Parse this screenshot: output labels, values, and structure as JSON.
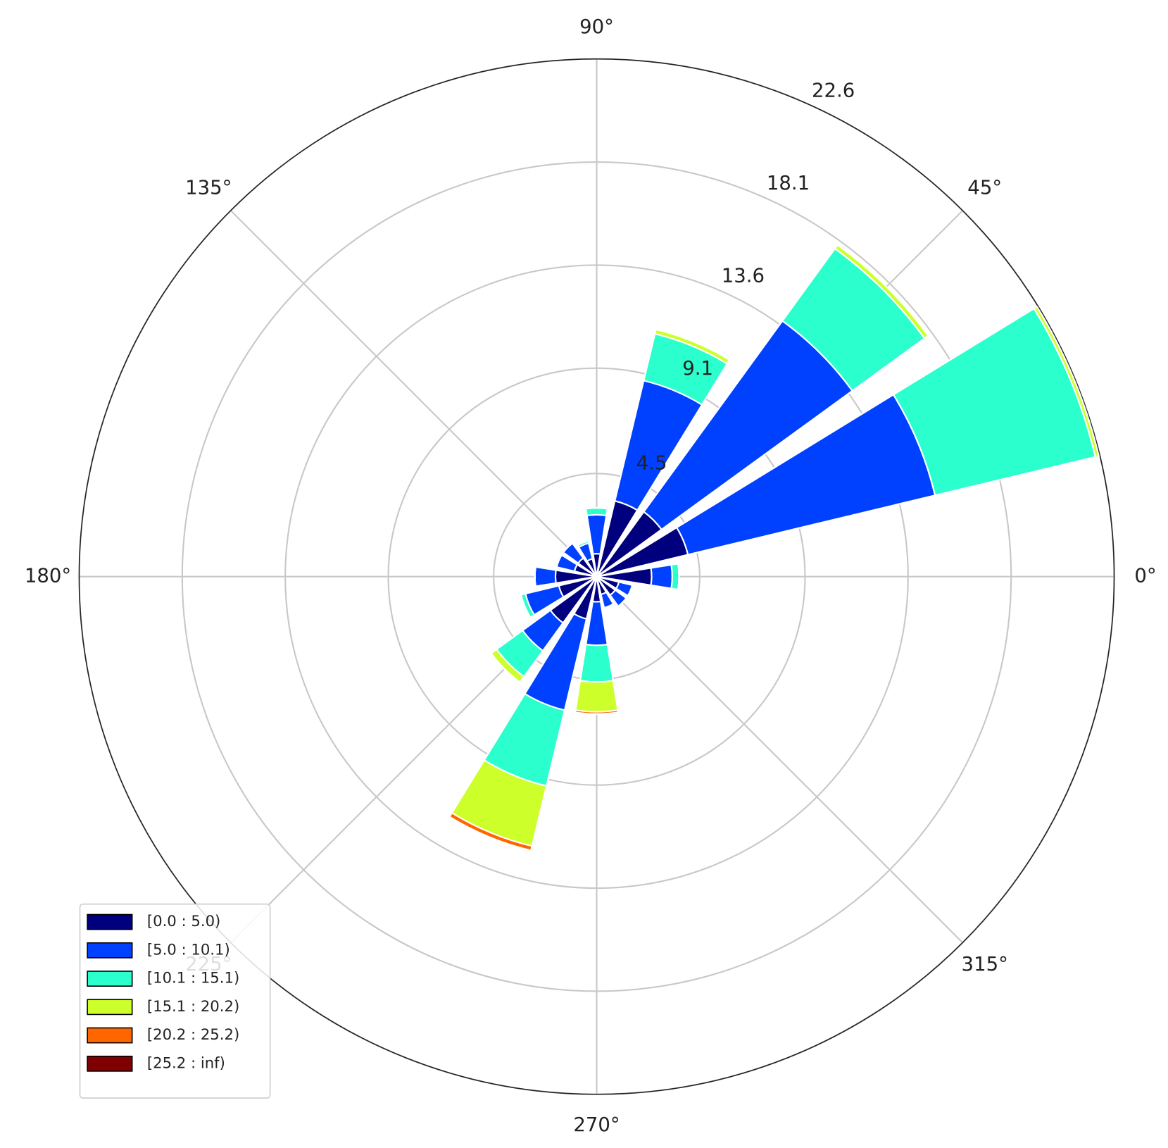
{
  "chart_data": {
    "type": "windrose",
    "x": [
      0,
      22.5,
      45,
      67.5,
      90,
      112.5,
      135,
      157.5,
      180,
      202.5,
      225,
      247.5,
      270,
      292.5,
      315,
      337.5
    ],
    "series": [
      {
        "name": "[0.0 : 5.0)",
        "color": "#00007f",
        "values": [
          2.4,
          4.1,
          3.5,
          3.4,
          1.0,
          0.8,
          1.0,
          1.0,
          1.8,
          1.7,
          2.5,
          1.9,
          1.1,
          0.8,
          1.0,
          1.0
        ]
      },
      {
        "name": "[5.0 : 10.1)",
        "color": "#0040ff",
        "values": [
          0.9,
          11.1,
          10.3,
          5.4,
          1.7,
          0.7,
          0.8,
          0.8,
          0.9,
          1.5,
          1.5,
          4.1,
          1.9,
          0.6,
          0.6,
          0.6
        ]
      },
      {
        "name": "[10.1 : 15.1)",
        "color": "#2affcd",
        "values": [
          0.3,
          7.2,
          3.9,
          2.1,
          0.3,
          0.1,
          0,
          0,
          0,
          0.2,
          1.4,
          3.4,
          1.6,
          0,
          0,
          0
        ]
      },
      {
        "name": "[15.1 : 20.2)",
        "color": "#cdff2a",
        "values": [
          0,
          0.15,
          0.2,
          0.2,
          0,
          0,
          0,
          0,
          0,
          0,
          0.3,
          2.7,
          1.3,
          0,
          0,
          0
        ]
      },
      {
        "name": "[20.2 : 25.2)",
        "color": "#ff6600",
        "values": [
          0,
          0,
          0,
          0,
          0,
          0,
          0,
          0,
          0,
          0,
          0,
          0.2,
          0.1,
          0,
          0,
          0
        ]
      },
      {
        "name": "[25.2 : inf)",
        "color": "#7f0000",
        "values": [
          0,
          0,
          0,
          0,
          0,
          0,
          0,
          0,
          0,
          0,
          0,
          0,
          0,
          0,
          0,
          0
        ]
      }
    ],
    "ylim": [
      0,
      22.6
    ],
    "yticks": [
      4.5,
      9.1,
      13.6,
      18.1,
      22.6
    ],
    "xticks": [
      {
        "value": 0,
        "label": "0°"
      },
      {
        "value": 45,
        "label": "45°"
      },
      {
        "value": 90,
        "label": "90°"
      },
      {
        "value": 135,
        "label": "135°"
      },
      {
        "value": 180,
        "label": "180°"
      },
      {
        "value": 225,
        "label": "225°"
      },
      {
        "value": 270,
        "label": "270°"
      },
      {
        "value": 315,
        "label": "315°"
      }
    ],
    "grid": true,
    "legend": "lower left"
  }
}
